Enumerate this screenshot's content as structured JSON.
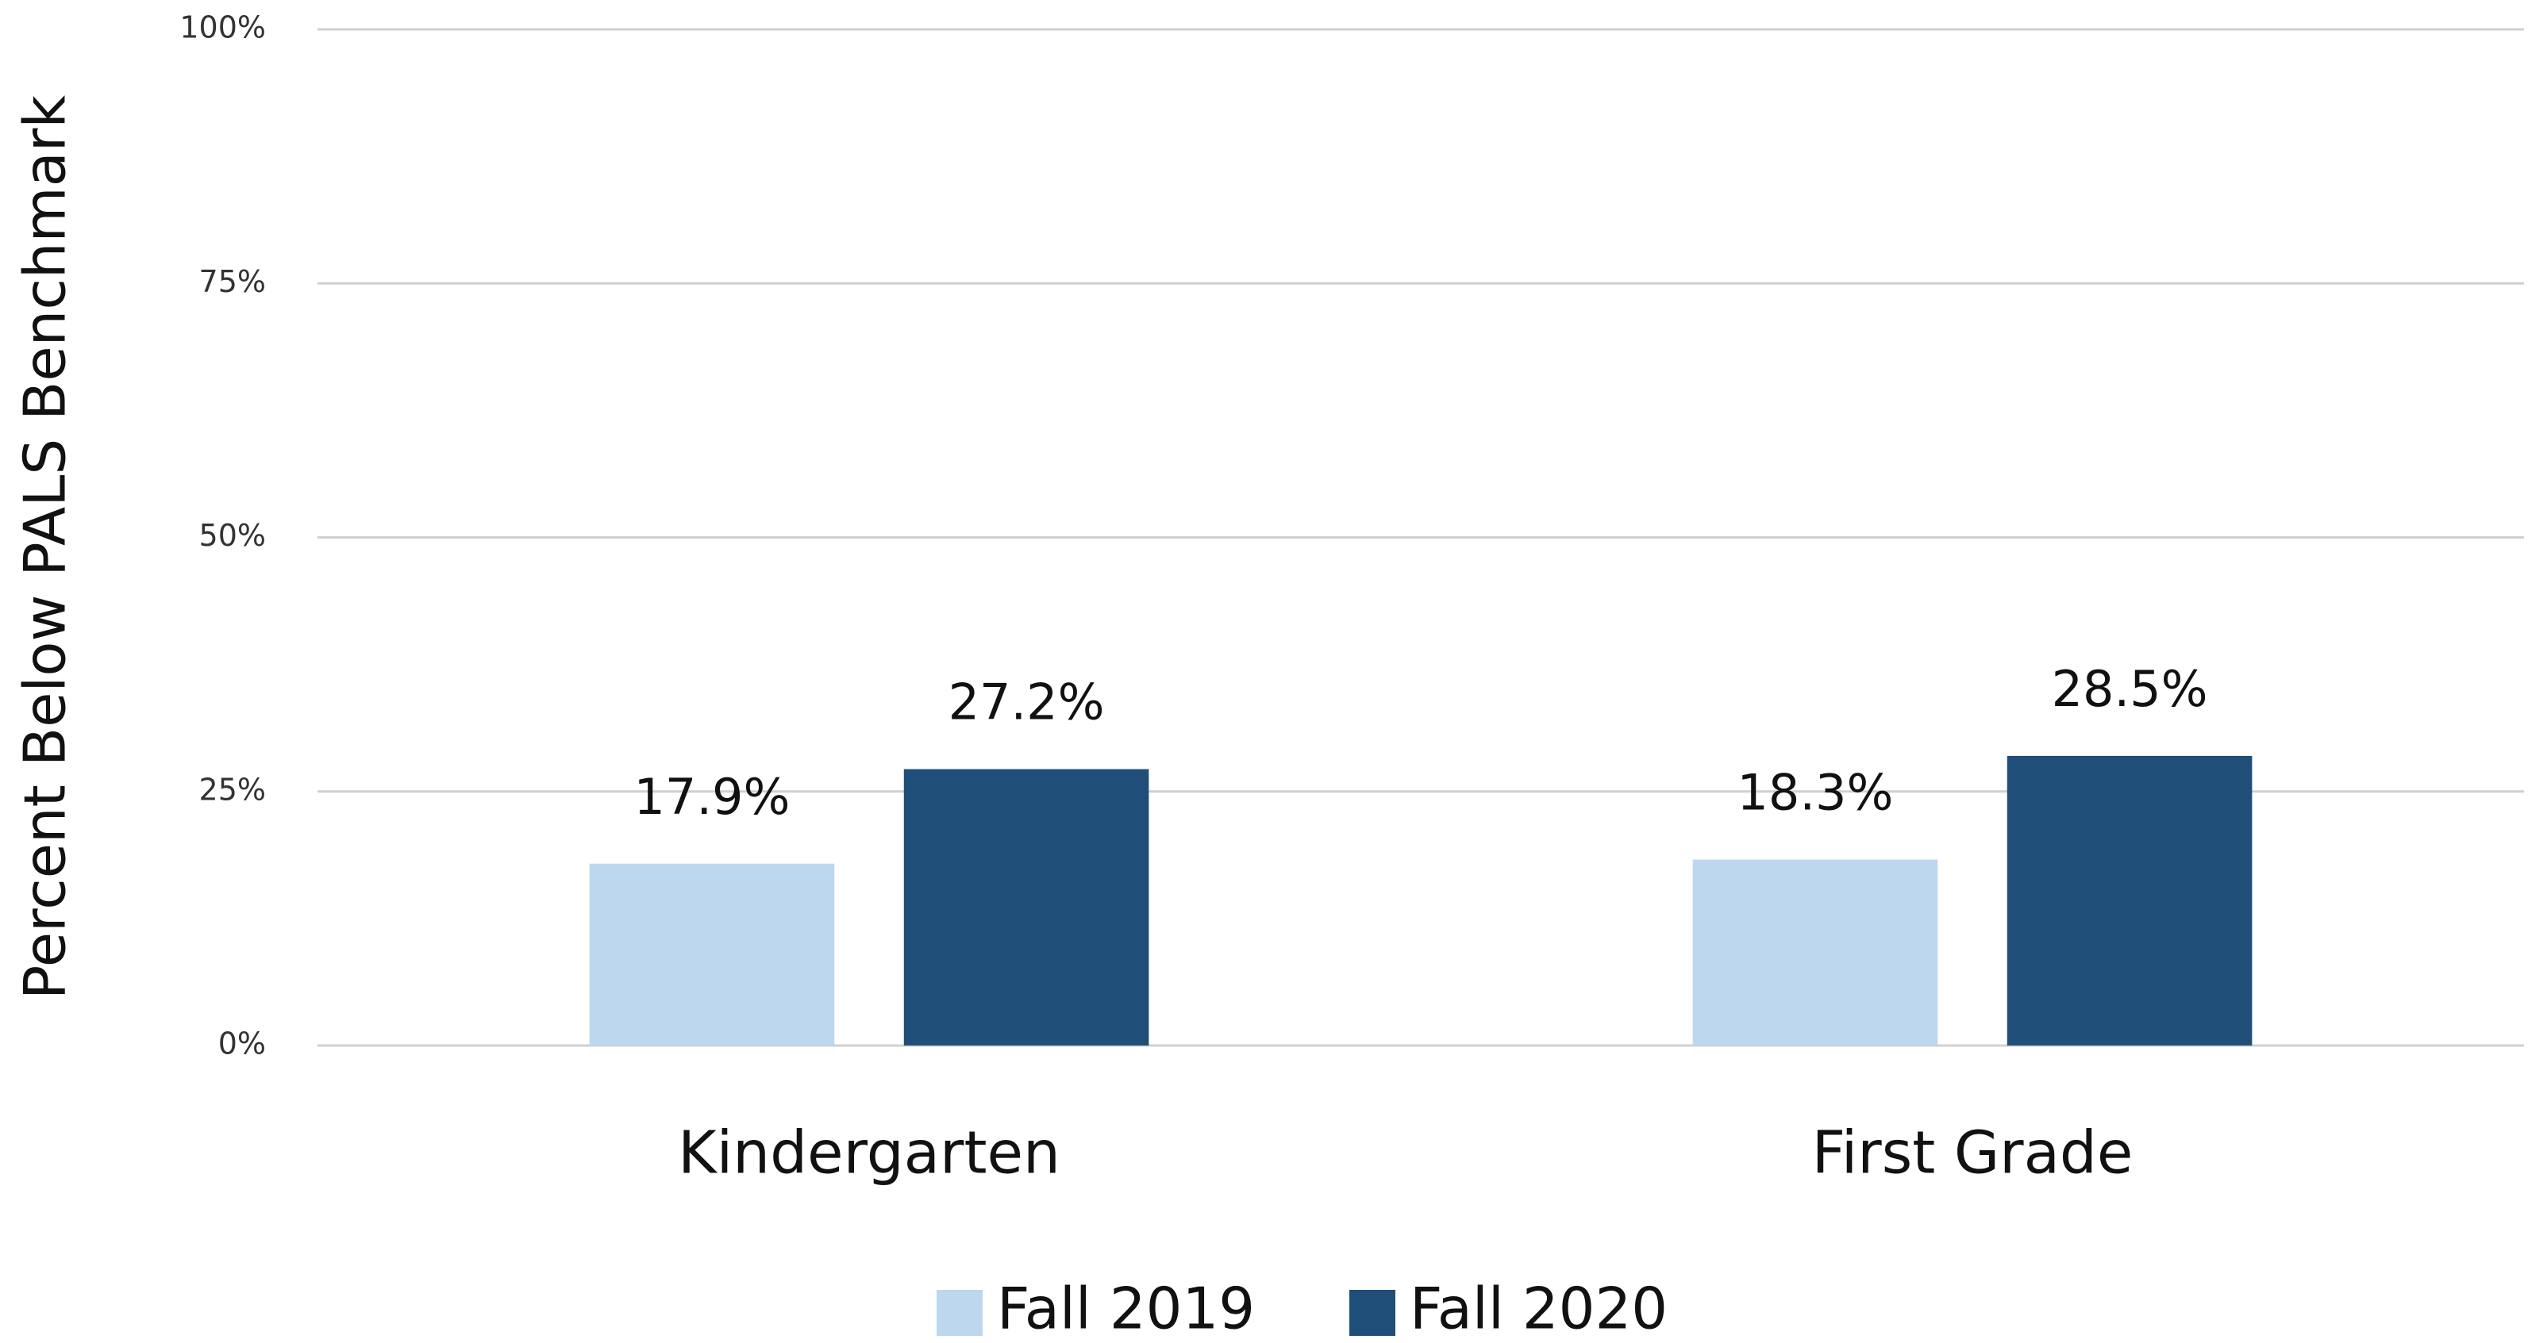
{
  "chart_data": {
    "type": "bar",
    "ylabel": "Percent Below PALS Benchmark",
    "categories": [
      "Kindergarten",
      "First Grade"
    ],
    "series": [
      {
        "name": "Fall 2019",
        "color": "#bdd7ee",
        "values": [
          17.9,
          18.3
        ],
        "value_labels": [
          "17.9%",
          "18.3%"
        ]
      },
      {
        "name": "Fall 2020",
        "color": "#1f4e79",
        "values": [
          27.2,
          28.5
        ],
        "value_labels": [
          "27.2%",
          "28.5%"
        ]
      }
    ],
    "ylim": [
      0,
      100
    ],
    "yticks": [
      {
        "value": 0,
        "label": "0%"
      },
      {
        "value": 25,
        "label": "25%"
      },
      {
        "value": 50,
        "label": "50%"
      },
      {
        "value": 75,
        "label": "75%"
      },
      {
        "value": 100,
        "label": "100%"
      }
    ],
    "grid": true,
    "legend": "bottom"
  }
}
